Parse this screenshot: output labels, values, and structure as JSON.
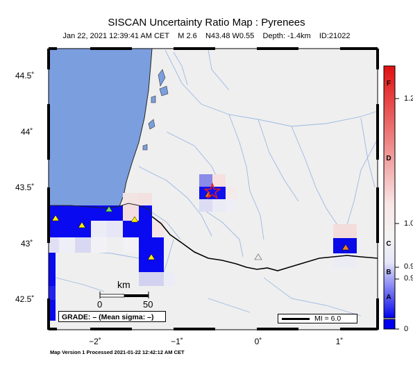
{
  "title": "SISCAN Uncertainty Ratio Map : Pyrenees",
  "subtitle": {
    "datetime": "Jan 22, 2021 12:39:41 AM CET",
    "magnitude": "M 2.6",
    "location": "N43.48 W0.55",
    "depth": "Depth: -1.4km",
    "id": "ID:21022"
  },
  "lat_labels": [
    "44.5˚",
    "44˚",
    "43.5˚",
    "43˚",
    "42.5˚"
  ],
  "lon_labels": [
    "−2˚",
    "−1˚",
    "0˚",
    "1˚"
  ],
  "scale": {
    "unit": "km",
    "start": "0",
    "end": "50"
  },
  "grade": "GRADE: – (Mean sigma: –)",
  "mi": "MI = 6.0",
  "footer": "Map Version 1 Processed 2021-01-22 12:42:12 AM CET",
  "colorbar": {
    "ticks": [
      "1.2",
      "1.0",
      "0.9",
      "0.9",
      "0"
    ],
    "grades": [
      "F",
      "D",
      "C",
      "B",
      "A"
    ],
    "colors": {
      "top": "#e01010",
      "mid": "#f4f4f4",
      "bottom": "#0000ee"
    }
  },
  "colors": {
    "sea": "#7b9ede",
    "land": "#efefef",
    "river": "#9bb8e4",
    "border": "#000000",
    "epicenter": "#e41a1c",
    "station_yellow": "#ffee00",
    "station_orange": "#f08020",
    "station_green": "#66dd66"
  },
  "icons": {
    "epicenter": "star-icon",
    "station": "triangle-icon"
  }
}
